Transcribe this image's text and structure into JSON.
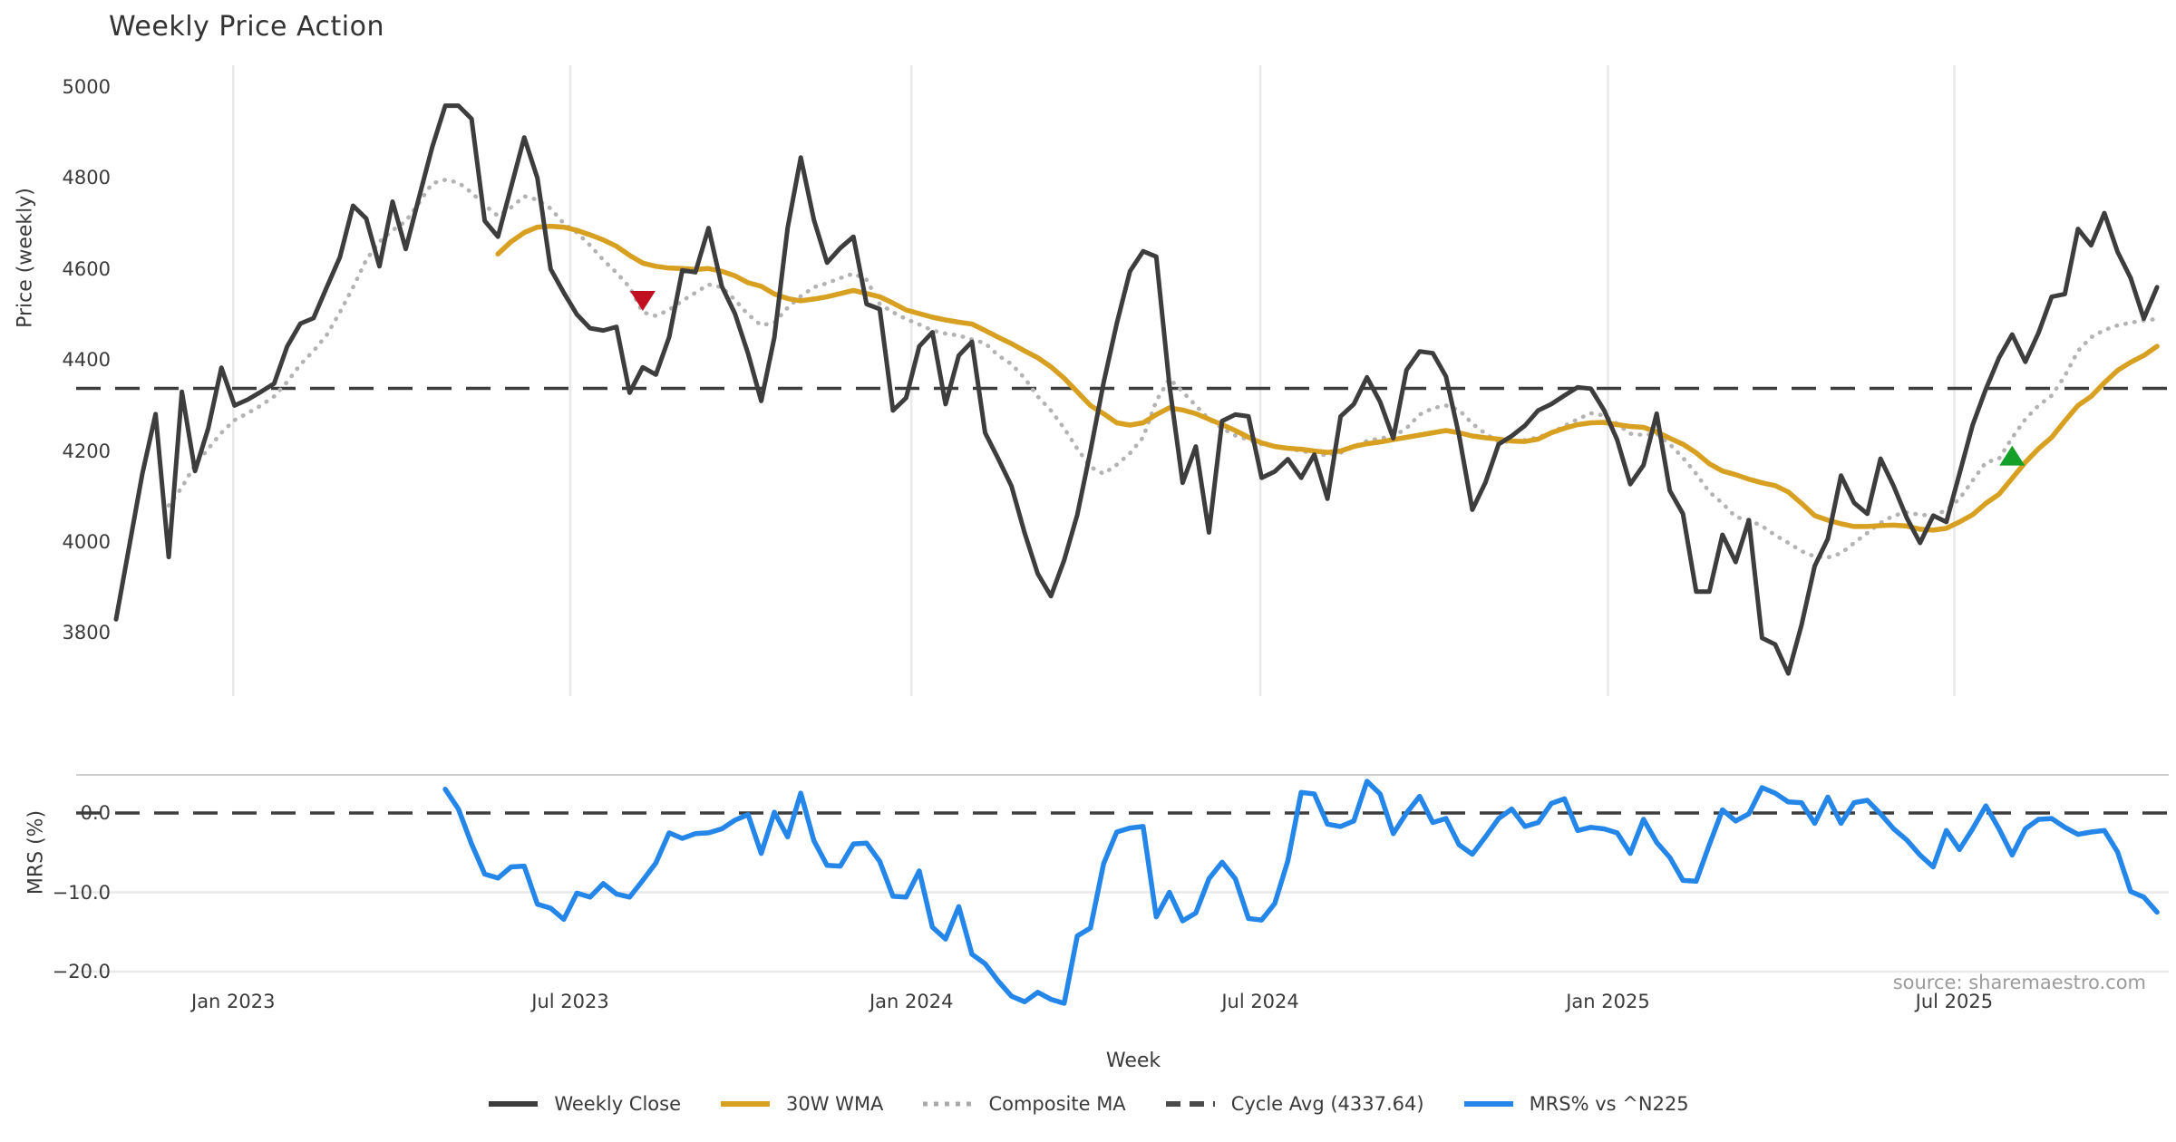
{
  "title": "Weekly Price Action",
  "source": "source: sharemaestro.com",
  "axes": {
    "price_label": "Price (weekly)",
    "mrs_label": "MRS (%)",
    "x_label": "Week"
  },
  "colors": {
    "close": "#3d3d3d",
    "wma": "#d7a021",
    "composite": "#b3b3b3",
    "cycle": "#3d3d3d",
    "mrs": "#2386e8",
    "sell_marker": "#c01020",
    "buy_marker": "#14a028",
    "gridline": "#e9e9e9",
    "panel_border": "#cfcfcf",
    "text": "#3a3a3a",
    "source_text": "#9b9b9b"
  },
  "legend": [
    {
      "label": "Weekly Close",
      "style": "solid",
      "color": "#3d3d3d"
    },
    {
      "label": "30W WMA",
      "style": "solid",
      "color": "#d7a021"
    },
    {
      "label": "Composite MA",
      "style": "dotted",
      "color": "#a9a9a9"
    },
    {
      "label": "Cycle Avg (4337.64)",
      "style": "dashed",
      "color": "#4a4a4a"
    },
    {
      "label": "MRS% vs ^N225",
      "style": "solid",
      "color": "#2386e8"
    }
  ],
  "chart_data": [
    {
      "panel": "price",
      "type": "line",
      "title": "Weekly Price Action",
      "ylabel": "Price (weekly)",
      "ylim": [
        3650,
        5050
      ],
      "yticks": [
        5000,
        4800,
        4600,
        4400,
        4200,
        4000,
        3800
      ],
      "grid": "vertical-only",
      "x_unit": "week_index",
      "x_ticks": [
        {
          "label": "Jan 2023",
          "week": 8.9
        },
        {
          "label": "Jul 2023",
          "week": 34.5
        },
        {
          "label": "Jan 2024",
          "week": 60.4
        },
        {
          "label": "Jul 2024",
          "week": 86.9
        },
        {
          "label": "Jan 2025",
          "week": 113.3
        },
        {
          "label": "Jul 2025",
          "week": 139.6
        }
      ],
      "cycle_avg": 4337.64,
      "markers": [
        {
          "type": "sell",
          "shape": "triangle-down",
          "week": 40,
          "price": 4530,
          "color": "#c01020"
        },
        {
          "type": "buy",
          "shape": "triangle-up",
          "week": 144,
          "price": 4190,
          "color": "#14a028"
        }
      ],
      "series": [
        {
          "name": "Weekly Close",
          "style": "solid",
          "color": "#3d3d3d",
          "start_week": 0,
          "values": [
            3830,
            3990,
            4150,
            4281,
            3967,
            4330,
            4156,
            4250,
            4383,
            4300,
            4313,
            4330,
            4348,
            4430,
            4480,
            4492,
            4560,
            4626,
            4739,
            4711,
            4606,
            4748,
            4644,
            4756,
            4867,
            4959,
            4959,
            4930,
            4706,
            4671,
            4780,
            4889,
            4800,
            4600,
            4548,
            4500,
            4470,
            4465,
            4473,
            4328,
            4384,
            4368,
            4450,
            4597,
            4593,
            4690,
            4562,
            4502,
            4414,
            4310,
            4450,
            4690,
            4845,
            4708,
            4614,
            4646,
            4671,
            4523,
            4512,
            4289,
            4317,
            4430,
            4461,
            4303,
            4410,
            4440,
            4240,
            4183,
            4123,
            4020,
            3930,
            3881,
            3960,
            4060,
            4200,
            4350,
            4480,
            4595,
            4639,
            4627,
            4345,
            4130,
            4210,
            4021,
            4266,
            4280,
            4276,
            4141,
            4155,
            4182,
            4141,
            4192,
            4095,
            4276,
            4303,
            4362,
            4308,
            4228,
            4378,
            4419,
            4415,
            4364,
            4234,
            4071,
            4131,
            4215,
            4233,
            4256,
            4289,
            4303,
            4322,
            4340,
            4337,
            4290,
            4225,
            4127,
            4169,
            4282,
            4113,
            4062,
            3891,
            3891,
            4016,
            3956,
            4048,
            3789,
            3775,
            3711,
            3817,
            3947,
            4007,
            4146,
            4086,
            4062,
            4183,
            4123,
            4053,
            3998,
            4058,
            4044,
            4150,
            4257,
            4336,
            4405,
            4456,
            4396,
            4460,
            4539,
            4545,
            4688,
            4652,
            4723,
            4638,
            4580,
            4491,
            4560
          ]
        },
        {
          "name": "30W WMA",
          "style": "solid",
          "color": "#d7a021",
          "start_week": 29,
          "values": [
            4633,
            4660,
            4680,
            4692,
            4694,
            4692,
            4685,
            4675,
            4664,
            4650,
            4630,
            4613,
            4606,
            4602,
            4601,
            4599,
            4601,
            4595,
            4585,
            4570,
            4562,
            4545,
            4535,
            4530,
            4534,
            4539,
            4546,
            4553,
            4546,
            4539,
            4525,
            4510,
            4502,
            4494,
            4488,
            4483,
            4479,
            4465,
            4450,
            4436,
            4420,
            4405,
            4385,
            4360,
            4330,
            4300,
            4282,
            4262,
            4257,
            4262,
            4280,
            4295,
            4290,
            4282,
            4270,
            4258,
            4245,
            4230,
            4218,
            4210,
            4206,
            4204,
            4200,
            4197,
            4200,
            4210,
            4216,
            4220,
            4225,
            4230,
            4235,
            4240,
            4245,
            4240,
            4233,
            4229,
            4226,
            4222,
            4221,
            4226,
            4240,
            4250,
            4258,
            4262,
            4263,
            4258,
            4254,
            4252,
            4242,
            4228,
            4215,
            4196,
            4172,
            4156,
            4148,
            4138,
            4130,
            4124,
            4110,
            4085,
            4058,
            4048,
            4040,
            4034,
            4034,
            4036,
            4037,
            4035,
            4028,
            4026,
            4030,
            4044,
            4060,
            4085,
            4105,
            4140,
            4175,
            4205,
            4230,
            4266,
            4300,
            4320,
            4350,
            4377,
            4395,
            4410,
            4430
          ]
        },
        {
          "name": "Composite MA",
          "style": "dotted",
          "color": "#b3b3b3",
          "start_week": 4,
          "values": [
            4080,
            4120,
            4170,
            4205,
            4240,
            4268,
            4283,
            4300,
            4320,
            4352,
            4390,
            4420,
            4455,
            4505,
            4560,
            4620,
            4660,
            4685,
            4705,
            4745,
            4788,
            4796,
            4790,
            4768,
            4740,
            4717,
            4735,
            4760,
            4752,
            4733,
            4700,
            4680,
            4652,
            4620,
            4592,
            4560,
            4505,
            4497,
            4510,
            4530,
            4548,
            4566,
            4560,
            4532,
            4500,
            4476,
            4482,
            4515,
            4540,
            4560,
            4569,
            4580,
            4590,
            4576,
            4523,
            4505,
            4490,
            4478,
            4465,
            4458,
            4454,
            4445,
            4437,
            4410,
            4391,
            4360,
            4320,
            4289,
            4250,
            4205,
            4165,
            4150,
            4170,
            4195,
            4230,
            4310,
            4359,
            4330,
            4300,
            4270,
            4250,
            4234,
            4225,
            4215,
            4210,
            4206,
            4200,
            4195,
            4190,
            4196,
            4210,
            4222,
            4228,
            4232,
            4250,
            4280,
            4294,
            4300,
            4290,
            4260,
            4238,
            4220,
            4221,
            4224,
            4230,
            4240,
            4255,
            4270,
            4283,
            4278,
            4260,
            4238,
            4235,
            4238,
            4215,
            4185,
            4150,
            4110,
            4085,
            4055,
            4048,
            4035,
            4015,
            3998,
            3980,
            3968,
            3966,
            3975,
            3998,
            4020,
            4042,
            4058,
            4065,
            4060,
            4058,
            4070,
            4095,
            4135,
            4175,
            4183,
            4229,
            4270,
            4300,
            4322,
            4365,
            4420,
            4450,
            4466,
            4476,
            4482,
            4487,
            4490
          ]
        }
      ]
    },
    {
      "panel": "mrs",
      "type": "line",
      "ylabel": "MRS (%)",
      "xlabel": "Week",
      "ylim": [
        -26.5,
        4.8
      ],
      "yticks": [
        0.0,
        -10.0,
        -20.0
      ],
      "ytick_labels": [
        "0.0",
        "−10.0",
        "−20.0"
      ],
      "zero_line_dashed": true,
      "series": [
        {
          "name": "MRS% vs ^N225",
          "style": "solid",
          "color": "#2386e8",
          "start_week": 25,
          "values": [
            3.0,
            0.5,
            -3.9,
            -7.7,
            -8.2,
            -6.8,
            -6.7,
            -11.5,
            -12.0,
            -13.4,
            -10.1,
            -10.6,
            -8.9,
            -10.2,
            -10.6,
            -8.5,
            -6.3,
            -2.5,
            -3.2,
            -2.6,
            -2.5,
            -2.0,
            -0.9,
            -0.2,
            -5.1,
            0.1,
            -3.0,
            2.5,
            -3.5,
            -6.6,
            -6.7,
            -3.9,
            -3.8,
            -6.1,
            -10.5,
            -10.6,
            -7.3,
            -14.4,
            -15.9,
            -11.8,
            -17.8,
            -19.0,
            -21.2,
            -23.1,
            -23.8,
            -22.6,
            -23.5,
            -24.0,
            -15.5,
            -14.5,
            -6.4,
            -2.4,
            -1.9,
            -1.7,
            -13.1,
            -10.0,
            -13.6,
            -12.6,
            -8.3,
            -6.2,
            -8.3,
            -13.3,
            -13.5,
            -11.4,
            -6.0,
            2.6,
            2.4,
            -1.4,
            -1.7,
            -1.0,
            4.0,
            2.4,
            -2.6,
            0.0,
            2.1,
            -1.2,
            -0.7,
            -4.0,
            -5.2,
            -3.0,
            -0.7,
            0.5,
            -1.7,
            -1.2,
            1.2,
            1.8,
            -2.2,
            -1.8,
            -2.0,
            -2.5,
            -5.1,
            -0.8,
            -3.7,
            -5.6,
            -8.5,
            -8.6,
            -4.0,
            0.4,
            -1.0,
            -0.1,
            3.2,
            2.5,
            1.4,
            1.3,
            -1.3,
            2.0,
            -1.3,
            1.3,
            1.6,
            -0.1,
            -2.0,
            -3.4,
            -5.3,
            -6.8,
            -2.2,
            -4.6,
            -2.0,
            0.9,
            -2.0,
            -5.3,
            -2.0,
            -0.8,
            -0.7,
            -1.8,
            -2.7,
            -2.4,
            -2.2,
            -4.9,
            -9.9,
            -10.6,
            -12.5
          ]
        }
      ]
    }
  ]
}
